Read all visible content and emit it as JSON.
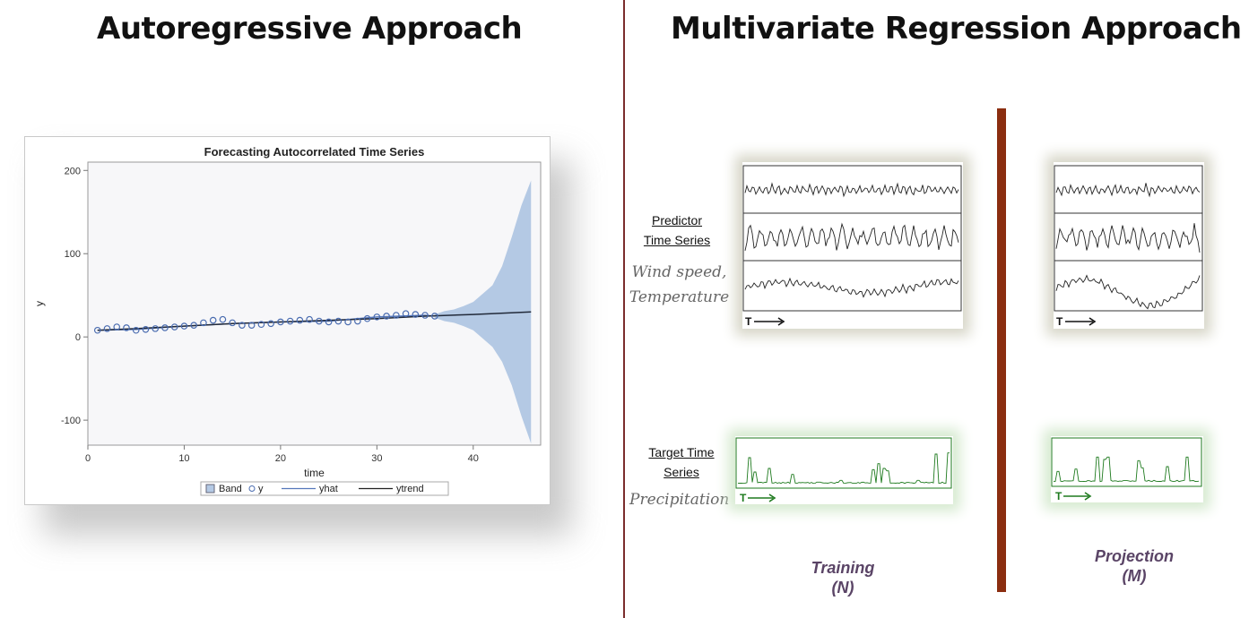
{
  "titles": {
    "left": "Autoregressive Approach",
    "right": "Multivariate Regression Approach"
  },
  "chart_data": {
    "type": "line",
    "title": "Forecasting Autocorrelated Time Series",
    "xlabel": "time",
    "ylabel": "y",
    "xlim": [
      0,
      47
    ],
    "ylim": [
      -130,
      210
    ],
    "xticks": [
      0,
      10,
      20,
      30,
      40
    ],
    "yticks": [
      -100,
      0,
      100,
      200
    ],
    "legend": [
      "Band",
      "y",
      "yhat",
      "ytrend"
    ],
    "legend_position": "bottom",
    "series": [
      {
        "name": "y",
        "marker": "circle",
        "x": [
          1,
          2,
          3,
          4,
          5,
          6,
          7,
          8,
          9,
          10,
          11,
          12,
          13,
          14,
          15,
          16,
          17,
          18,
          19,
          20,
          21,
          22,
          23,
          24,
          25,
          26,
          27,
          28,
          29,
          30,
          31,
          32,
          33,
          34,
          35,
          36
        ],
        "values": [
          8,
          10,
          12,
          11,
          8,
          9,
          10,
          11,
          12,
          13,
          14,
          17,
          20,
          21,
          17,
          14,
          14,
          15,
          16,
          18,
          19,
          20,
          21,
          19,
          18,
          19,
          18,
          19,
          22,
          24,
          25,
          26,
          28,
          27,
          26,
          25
        ]
      },
      {
        "name": "yhat",
        "x": [
          1,
          5,
          10,
          15,
          20,
          25,
          30,
          35,
          36
        ],
        "values": [
          8,
          9,
          13,
          16,
          18,
          19,
          24,
          26,
          25
        ]
      },
      {
        "name": "ytrend",
        "x": [
          1,
          5,
          10,
          15,
          20,
          25,
          30,
          35,
          40,
          46
        ],
        "values": [
          8,
          10,
          13,
          16,
          18,
          20,
          22,
          25,
          27,
          30
        ]
      },
      {
        "name": "Band",
        "x": [
          36,
          37,
          38,
          39,
          40,
          41,
          42,
          43,
          44,
          45,
          46
        ],
        "upper": [
          27,
          31,
          33,
          37,
          42,
          52,
          62,
          85,
          120,
          158,
          188
        ],
        "lower": [
          23,
          19,
          17,
          13,
          8,
          -2,
          -12,
          -30,
          -58,
          -95,
          -128
        ]
      }
    ]
  },
  "right": {
    "predictor_label": [
      "Predictor",
      "Time Series"
    ],
    "predictor_script": [
      "Wind speed,",
      "Temperature"
    ],
    "target_label": [
      "Target Time",
      "Series"
    ],
    "target_script": "Precipitation",
    "time_label": "T",
    "training": [
      "Training",
      "(N)"
    ],
    "projection": [
      "Projection",
      "(M)"
    ],
    "colors": {
      "bar": "#8b2e10",
      "target_line": "#1e7a1e"
    }
  }
}
